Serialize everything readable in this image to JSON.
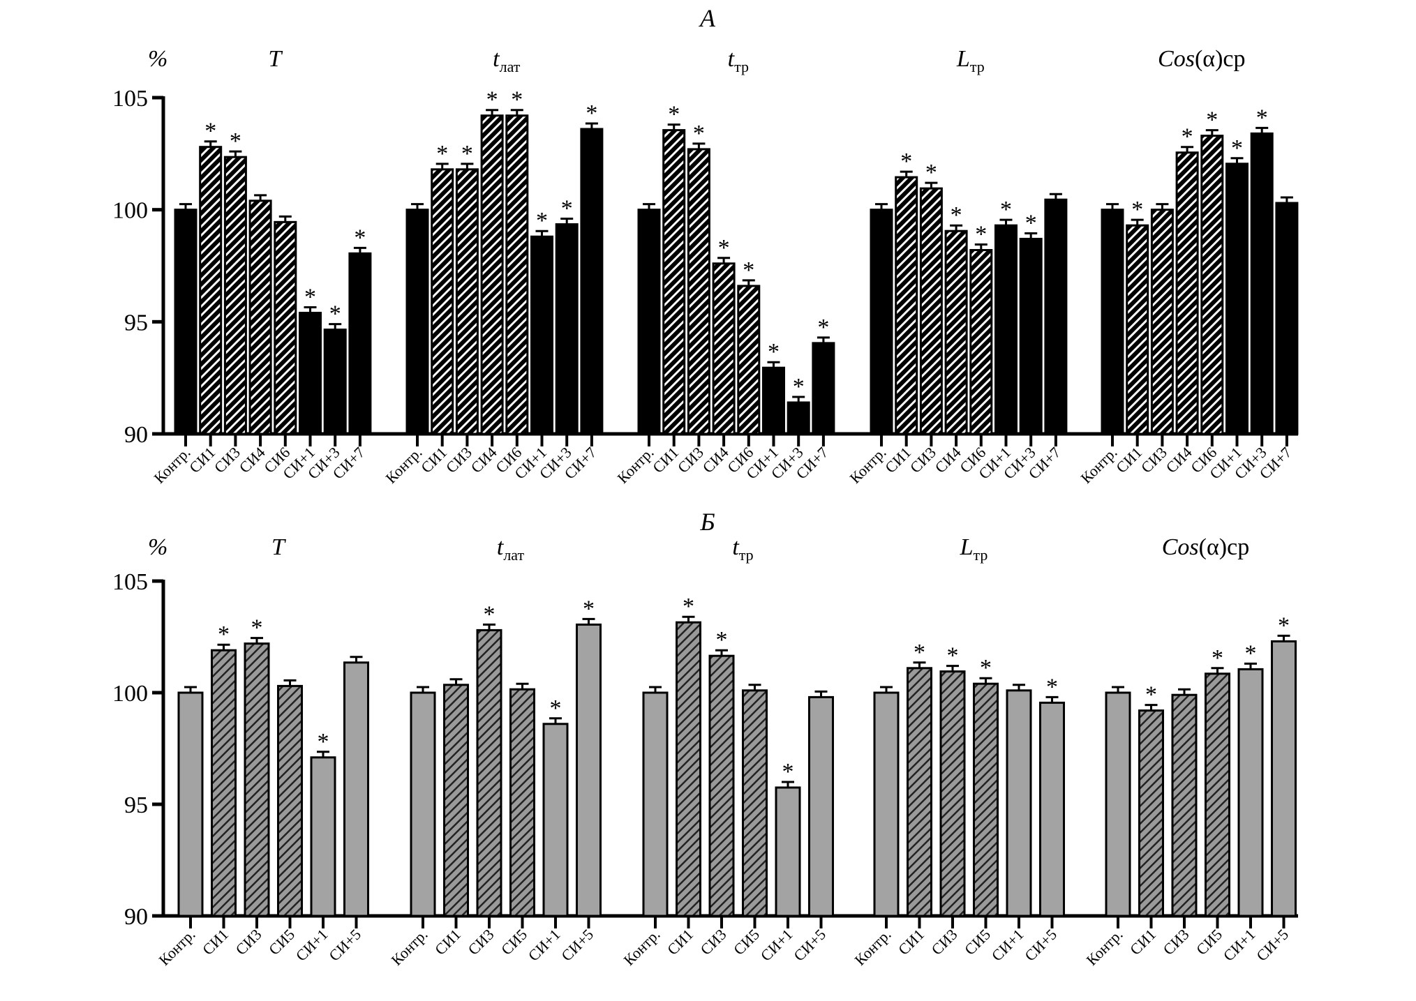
{
  "chart_data": [
    {
      "type": "bar",
      "title": "А",
      "ylabel": "%",
      "ylim": [
        90,
        105
      ],
      "yticks": [
        90,
        95,
        100,
        105
      ],
      "colors": {
        "solid": "#000000",
        "hatch_bg": "#000000",
        "hatch_line": "#ffffff"
      },
      "categories": [
        "Контр.",
        "СИ1",
        "СИ3",
        "СИ4",
        "СИ6",
        "СИ+1",
        "СИ+3",
        "СИ+7"
      ],
      "hatched": [
        false,
        true,
        true,
        true,
        true,
        false,
        false,
        false
      ],
      "groups": [
        {
          "title": "T",
          "sub": "",
          "suffix": "",
          "values": [
            100,
            102.8,
            102.35,
            100.4,
            99.45,
            95.4,
            94.65,
            98.05
          ],
          "significant": [
            false,
            true,
            true,
            false,
            false,
            true,
            true,
            true
          ]
        },
        {
          "title": "t",
          "sub": "лат",
          "suffix": "",
          "values": [
            100,
            101.8,
            101.8,
            104.2,
            104.2,
            98.8,
            99.35,
            103.6
          ],
          "significant": [
            false,
            true,
            true,
            true,
            true,
            true,
            true,
            true
          ]
        },
        {
          "title": "t",
          "sub": "тр",
          "suffix": "",
          "values": [
            100,
            103.55,
            102.7,
            97.6,
            96.6,
            92.95,
            91.4,
            94.05
          ],
          "significant": [
            false,
            true,
            true,
            true,
            true,
            true,
            true,
            true
          ]
        },
        {
          "title": "L",
          "sub": "тр",
          "suffix": "",
          "values": [
            100,
            101.45,
            100.95,
            99.05,
            98.2,
            99.3,
            98.7,
            100.45
          ],
          "significant": [
            false,
            true,
            true,
            true,
            true,
            true,
            true,
            false
          ]
        },
        {
          "title": "Cos",
          "sub": "",
          "suffix": "(α)ср",
          "values": [
            100,
            99.3,
            100,
            102.55,
            103.3,
            102.05,
            103.4,
            100.3
          ],
          "significant": [
            false,
            true,
            false,
            true,
            true,
            true,
            true,
            false
          ]
        }
      ]
    },
    {
      "type": "bar",
      "title": "Б",
      "ylabel": "%",
      "ylim": [
        90,
        105
      ],
      "yticks": [
        90,
        95,
        100,
        105
      ],
      "colors": {
        "solid": "#a3a3a3",
        "hatch_bg": "#9a9a9a",
        "hatch_line": "#222222"
      },
      "categories": [
        "Контр.",
        "СИ1",
        "СИ3",
        "СИ5",
        "СИ+1",
        "СИ+5"
      ],
      "hatched": [
        false,
        true,
        true,
        true,
        false,
        false
      ],
      "groups": [
        {
          "title": "T",
          "sub": "",
          "suffix": "",
          "values": [
            100,
            101.9,
            102.2,
            100.3,
            97.1,
            101.35
          ],
          "significant": [
            false,
            true,
            true,
            false,
            true,
            false
          ]
        },
        {
          "title": "t",
          "sub": "лат",
          "suffix": "",
          "values": [
            100,
            100.35,
            102.8,
            100.15,
            98.6,
            103.05
          ],
          "significant": [
            false,
            false,
            true,
            false,
            true,
            true
          ]
        },
        {
          "title": "t",
          "sub": "тр",
          "suffix": "",
          "values": [
            100,
            103.15,
            101.65,
            100.1,
            95.75,
            99.8
          ],
          "significant": [
            false,
            true,
            true,
            false,
            true,
            false
          ]
        },
        {
          "title": "L",
          "sub": "тр",
          "suffix": "",
          "values": [
            100,
            101.1,
            100.95,
            100.4,
            100.1,
            99.55
          ],
          "significant": [
            false,
            true,
            true,
            true,
            false,
            true
          ]
        },
        {
          "title": "Cos",
          "sub": "",
          "suffix": "(α)ср",
          "values": [
            100,
            99.2,
            99.9,
            100.85,
            101.05,
            102.3
          ],
          "significant": [
            false,
            true,
            false,
            true,
            true,
            true
          ]
        }
      ]
    }
  ],
  "significance_marker": "*"
}
